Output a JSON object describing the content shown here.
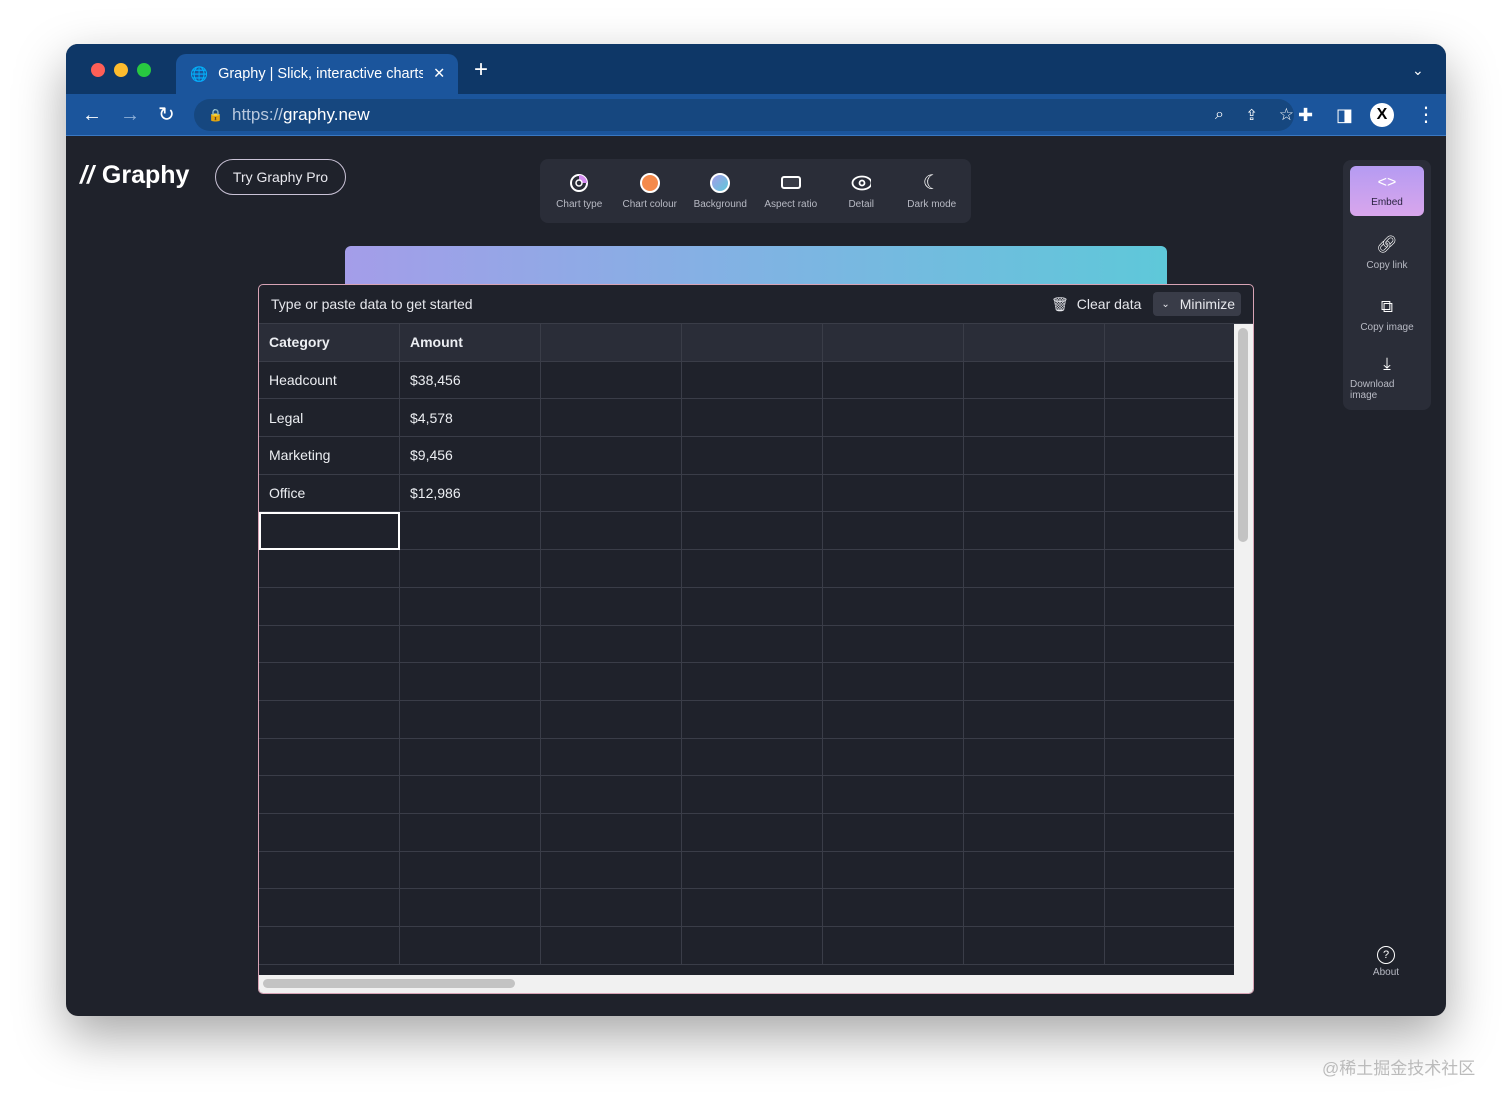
{
  "browser": {
    "tab_title": "Graphy | Slick, interactive charts",
    "url_scheme": "https://",
    "url_host": "graphy.new",
    "profile_initial": "X"
  },
  "app": {
    "logo": "Graphy",
    "pro_button": "Try Graphy Pro",
    "tools": [
      {
        "label": "Chart type",
        "icon": "chart-type-icon"
      },
      {
        "label": "Chart colour",
        "icon": "orange-swatch",
        "color": "#f58a4b"
      },
      {
        "label": "Background",
        "icon": "gradient-swatch"
      },
      {
        "label": "Aspect ratio",
        "icon": "rectangle-icon"
      },
      {
        "label": "Detail",
        "icon": "eye-icon"
      },
      {
        "label": "Dark mode",
        "icon": "moon-icon"
      }
    ],
    "side": [
      {
        "label": "Embed",
        "icon": "code-icon"
      },
      {
        "label": "Copy link",
        "icon": "link-icon"
      },
      {
        "label": "Copy image",
        "icon": "copy-icon"
      },
      {
        "label": "Download image",
        "icon": "download-icon"
      }
    ],
    "about": "About"
  },
  "data_panel": {
    "prompt": "Type or paste data to get started",
    "clear": "Clear data",
    "minimize": "Minimize",
    "headers": [
      "Category",
      "Amount"
    ],
    "rows": [
      [
        "Headcount",
        "$38,456"
      ],
      [
        "Legal",
        "$4,578"
      ],
      [
        "Marketing",
        "$9,456"
      ],
      [
        "Office",
        "$12,986"
      ]
    ]
  },
  "watermark": "@稀土掘金技术社区"
}
